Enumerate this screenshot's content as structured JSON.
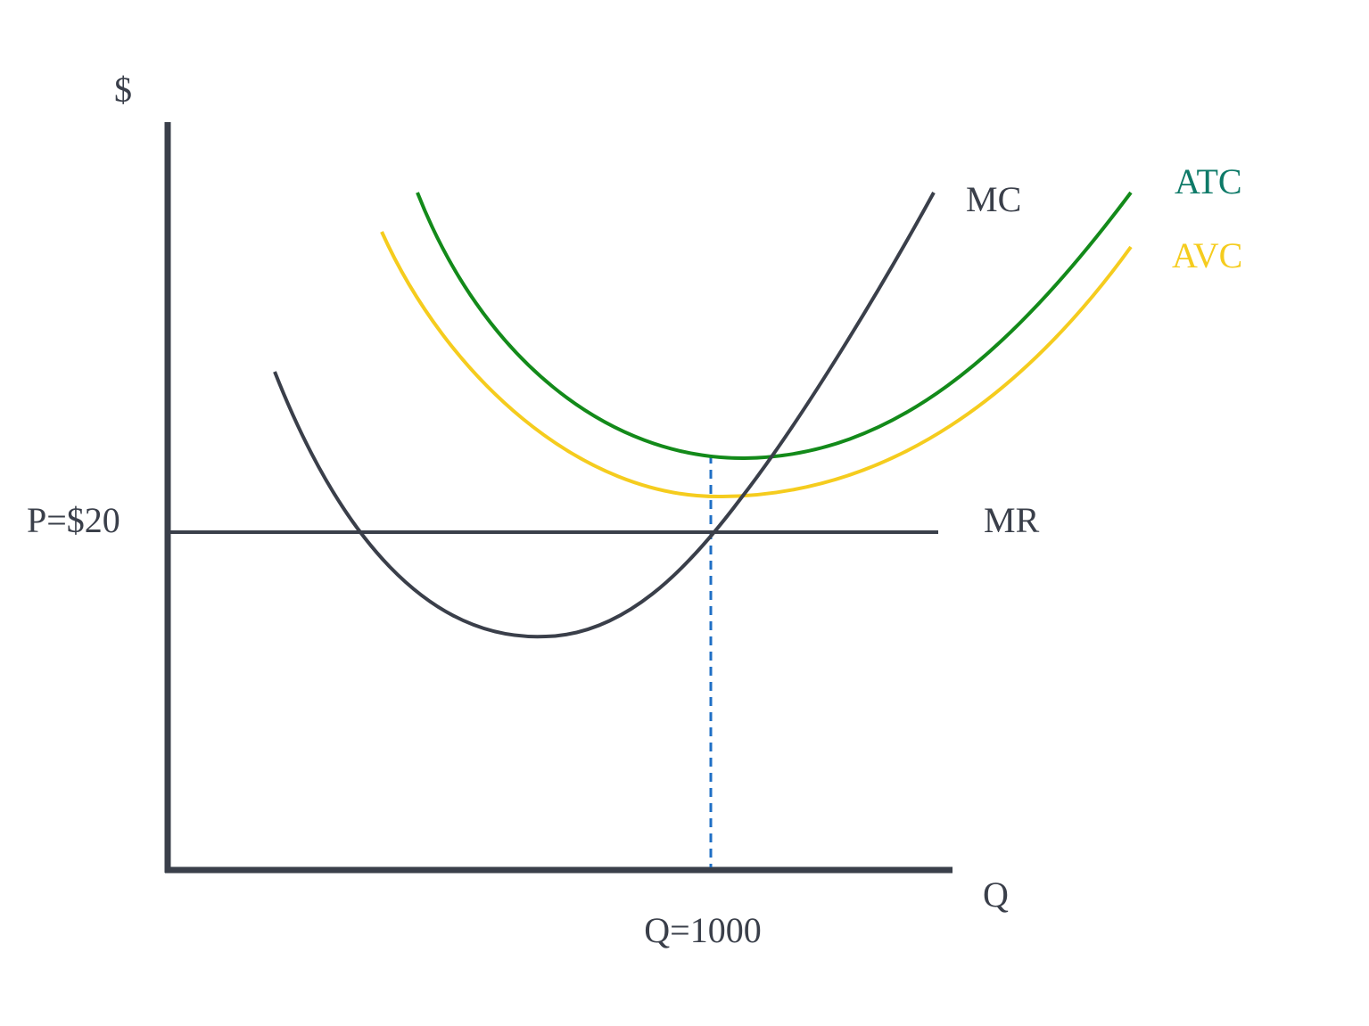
{
  "axes": {
    "y_label": "$",
    "x_label": "Q"
  },
  "curves": [
    {
      "label": "MC"
    },
    {
      "label": "ATC"
    },
    {
      "label": "AVC"
    },
    {
      "label": "MR"
    }
  ],
  "annotations": {
    "price": "P=$20",
    "quantity": "Q=1000"
  }
}
